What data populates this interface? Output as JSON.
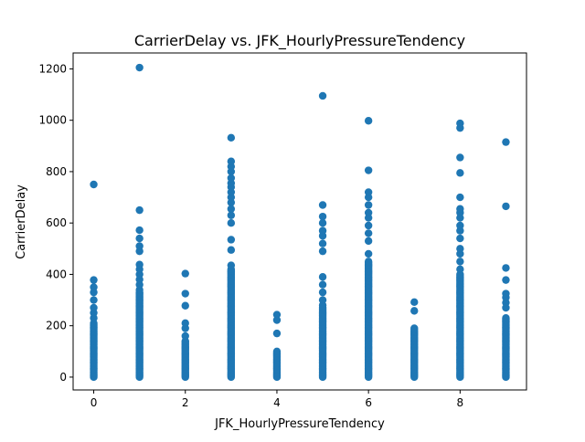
{
  "chart_data": {
    "type": "scatter",
    "title": "CarrierDelay vs. JFK_HourlyPressureTendency",
    "xlabel": "JFK_HourlyPressureTendency",
    "ylabel": "CarrierDelay",
    "xlim": [
      -0.45,
      9.45
    ],
    "ylim": [
      -50,
      1262
    ],
    "xticks": [
      0,
      2,
      4,
      6,
      8
    ],
    "yticks": [
      0,
      200,
      400,
      600,
      800,
      1000,
      1200
    ],
    "grid": false,
    "marker_color": "#1f77b4",
    "series": [
      {
        "columns": [
          {
            "x": 0,
            "dense_min": 0,
            "dense_max": 210,
            "points": [
              230,
              250,
              270,
              300,
              330,
              350,
              378,
              750
            ]
          },
          {
            "x": 1,
            "dense_min": 0,
            "dense_max": 330,
            "points": [
              340,
              360,
              380,
              400,
              420,
              438,
              490,
              510,
              540,
              572,
              650,
              1205
            ]
          },
          {
            "x": 2,
            "dense_min": 0,
            "dense_max": 140,
            "points": [
              160,
              190,
              210,
              278,
              325,
              403
            ]
          },
          {
            "x": 3,
            "dense_min": 0,
            "dense_max": 420,
            "points": [
              435,
              495,
              535,
              600,
              630,
              655,
              680,
              700,
              720,
              740,
              755,
              775,
              800,
              820,
              840,
              932
            ]
          },
          {
            "x": 4,
            "dense_min": 0,
            "dense_max": 100,
            "points": [
              170,
              222,
              243
            ]
          },
          {
            "x": 5,
            "dense_min": 0,
            "dense_max": 270,
            "points": [
              280,
              300,
              330,
              360,
              390,
              490,
              520,
              550,
              570,
              600,
              625,
              670,
              1095
            ]
          },
          {
            "x": 6,
            "dense_min": 0,
            "dense_max": 450,
            "points": [
              480,
              530,
              560,
              590,
              620,
              640,
              670,
              700,
              720,
              805,
              998
            ]
          },
          {
            "x": 7,
            "dense_min": 0,
            "dense_max": 190,
            "points": [
              258,
              292
            ]
          },
          {
            "x": 8,
            "dense_min": 0,
            "dense_max": 400,
            "points": [
              420,
              450,
              480,
              500,
              540,
              570,
              590,
              620,
              640,
              655,
              700,
              795,
              855,
              970,
              988
            ]
          },
          {
            "x": 9,
            "dense_min": 0,
            "dense_max": 230,
            "points": [
              270,
              290,
              310,
              325,
              378,
              425,
              665,
              915
            ]
          }
        ]
      }
    ]
  }
}
